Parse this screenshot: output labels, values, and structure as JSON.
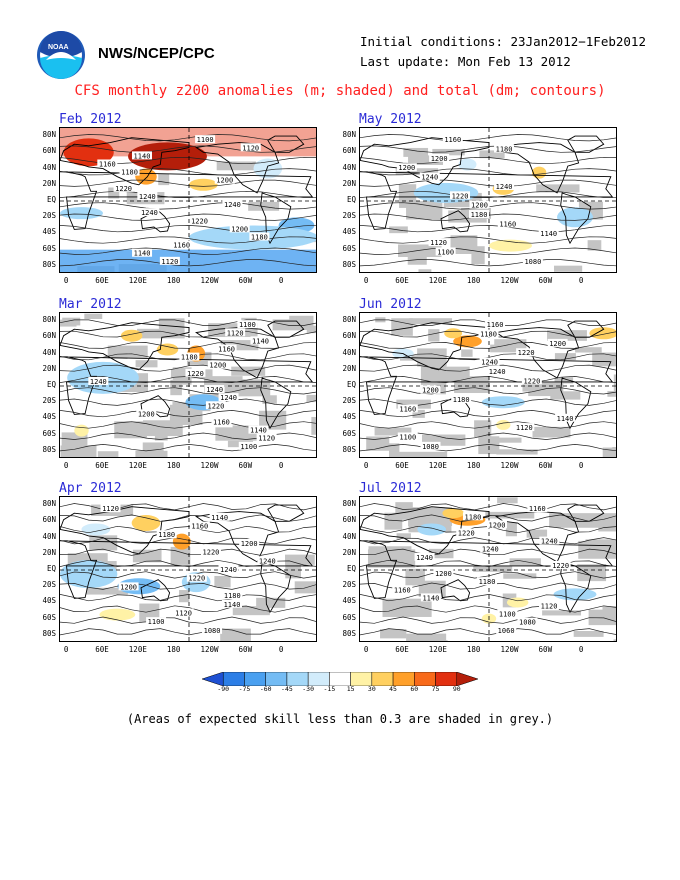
{
  "header": {
    "org": "NWS/NCEP/CPC",
    "initial_conditions": "Initial conditions: 23Jan2012−1Feb2012",
    "last_update": "Last update: Mon Feb 13 2012",
    "logo_text": "NOAA"
  },
  "chart_data": {
    "type": "heatmap",
    "title": "CFS monthly z200 anomalies (m; shaded) and total (dm; contours)",
    "footnote": "(Areas of expected skill less than 0.3 are shaded in grey.)",
    "lat_ticks": [
      "80N",
      "60N",
      "40N",
      "20N",
      "EQ",
      "20S",
      "40S",
      "60S",
      "80S"
    ],
    "lon_ticks": [
      "0",
      "60E",
      "120E",
      "180",
      "120W",
      "60W",
      "0"
    ],
    "colorbar": {
      "levels": [
        "-90",
        "-75",
        "-60",
        "-45",
        "-30",
        "-15",
        "15",
        "30",
        "45",
        "60",
        "75",
        "90"
      ],
      "colors": [
        "#1e50d2",
        "#2c7ee6",
        "#4aa0f0",
        "#74bcf4",
        "#a4d8f8",
        "#d2ecfb",
        "#ffffff",
        "#fff2a6",
        "#ffd060",
        "#ffa02a",
        "#f86a1a",
        "#e23010",
        "#b41e0a"
      ]
    },
    "panels": [
      {
        "month": "Feb 2012",
        "labels": [
          "1100",
          "1120",
          "1140",
          "1160",
          "1180",
          "1200",
          "1220",
          "1240",
          "1240",
          "1240",
          "1220",
          "1200",
          "1180",
          "1160",
          "1140",
          "1120"
        ]
      },
      {
        "month": "Mar 2012",
        "labels": [
          "1100",
          "1120",
          "1140",
          "1160",
          "1180",
          "1200",
          "1220",
          "1240",
          "1240",
          "1240",
          "1220",
          "1200",
          "1160",
          "1140",
          "1120",
          "1100"
        ]
      },
      {
        "month": "Apr 2012",
        "labels": [
          "1120",
          "1140",
          "1160",
          "1180",
          "1200",
          "1220",
          "1240",
          "1240",
          "1220",
          "1200",
          "1180",
          "1140",
          "1120",
          "1100",
          "1080"
        ]
      },
      {
        "month": "May 2012",
        "labels": [
          "1160",
          "1180",
          "1200",
          "1200",
          "1240",
          "1240",
          "1220",
          "1200",
          "1180",
          "1160",
          "1140",
          "1120",
          "1100",
          "1080"
        ]
      },
      {
        "month": "Jun 2012",
        "labels": [
          "1160",
          "1180",
          "1200",
          "1220",
          "1240",
          "1240",
          "1220",
          "1200",
          "1180",
          "1160",
          "1140",
          "1120",
          "1100",
          "1080"
        ]
      },
      {
        "month": "Jul 2012",
        "labels": [
          "1160",
          "1180",
          "1200",
          "1220",
          "1240",
          "1240",
          "1240",
          "1220",
          "1200",
          "1180",
          "1160",
          "1140",
          "1120",
          "1100",
          "1080",
          "1060"
        ]
      }
    ]
  }
}
